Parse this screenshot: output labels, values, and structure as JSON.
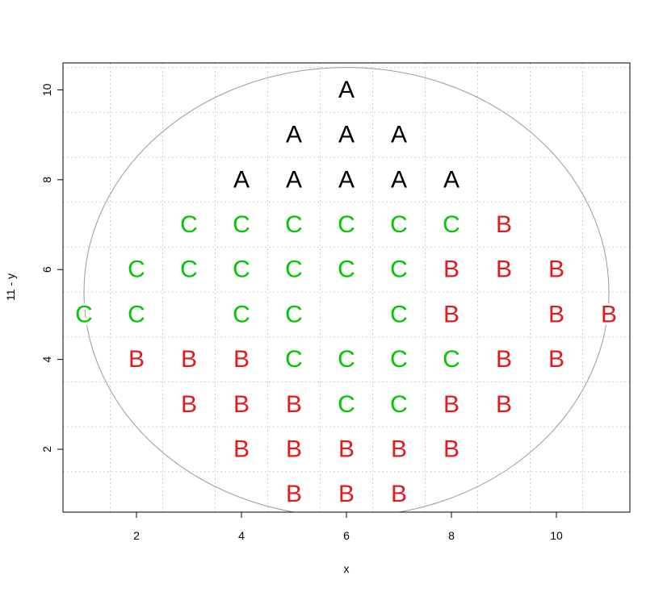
{
  "chart_data": {
    "type": "scatter",
    "xlabel": "x",
    "ylabel": "11 - y",
    "xlim": [
      0.6,
      11.4
    ],
    "ylim": [
      0.6,
      10.6
    ],
    "x_ticks": [
      2,
      4,
      6,
      8,
      10
    ],
    "y_ticks": [
      2,
      4,
      6,
      8,
      10
    ],
    "grid": true,
    "grid_lines": [
      1.5,
      2.5,
      3.5,
      4.5,
      5.5,
      6.5,
      7.5,
      8.5,
      9.5,
      10.5
    ],
    "circle": {
      "center_x": 6,
      "center_y": 5.5,
      "radius": 5
    },
    "colors": {
      "A": "#000000",
      "B": "#e31a1c",
      "C": "#00c800",
      "grid": "#cfcfcf",
      "circle": "#9a9a9a"
    },
    "points": [
      {
        "x": 6,
        "y": 10,
        "label": "A"
      },
      {
        "x": 5,
        "y": 9,
        "label": "A"
      },
      {
        "x": 6,
        "y": 9,
        "label": "A"
      },
      {
        "x": 7,
        "y": 9,
        "label": "A"
      },
      {
        "x": 4,
        "y": 8,
        "label": "A"
      },
      {
        "x": 5,
        "y": 8,
        "label": "A"
      },
      {
        "x": 6,
        "y": 8,
        "label": "A"
      },
      {
        "x": 7,
        "y": 8,
        "label": "A"
      },
      {
        "x": 8,
        "y": 8,
        "label": "A"
      },
      {
        "x": 3,
        "y": 7,
        "label": "C"
      },
      {
        "x": 4,
        "y": 7,
        "label": "C"
      },
      {
        "x": 5,
        "y": 7,
        "label": "C"
      },
      {
        "x": 6,
        "y": 7,
        "label": "C"
      },
      {
        "x": 7,
        "y": 7,
        "label": "C"
      },
      {
        "x": 8,
        "y": 7,
        "label": "C"
      },
      {
        "x": 9,
        "y": 7,
        "label": "B"
      },
      {
        "x": 2,
        "y": 6,
        "label": "C"
      },
      {
        "x": 3,
        "y": 6,
        "label": "C"
      },
      {
        "x": 4,
        "y": 6,
        "label": "C"
      },
      {
        "x": 5,
        "y": 6,
        "label": "C"
      },
      {
        "x": 6,
        "y": 6,
        "label": "C"
      },
      {
        "x": 7,
        "y": 6,
        "label": "C"
      },
      {
        "x": 8,
        "y": 6,
        "label": "B"
      },
      {
        "x": 9,
        "y": 6,
        "label": "B"
      },
      {
        "x": 10,
        "y": 6,
        "label": "B"
      },
      {
        "x": 1,
        "y": 5,
        "label": "C"
      },
      {
        "x": 2,
        "y": 5,
        "label": "C"
      },
      {
        "x": 4,
        "y": 5,
        "label": "C"
      },
      {
        "x": 5,
        "y": 5,
        "label": "C"
      },
      {
        "x": 7,
        "y": 5,
        "label": "C"
      },
      {
        "x": 8,
        "y": 5,
        "label": "B"
      },
      {
        "x": 10,
        "y": 5,
        "label": "B"
      },
      {
        "x": 11,
        "y": 5,
        "label": "B"
      },
      {
        "x": 2,
        "y": 4,
        "label": "B"
      },
      {
        "x": 3,
        "y": 4,
        "label": "B"
      },
      {
        "x": 4,
        "y": 4,
        "label": "B"
      },
      {
        "x": 5,
        "y": 4,
        "label": "C"
      },
      {
        "x": 6,
        "y": 4,
        "label": "C"
      },
      {
        "x": 7,
        "y": 4,
        "label": "C"
      },
      {
        "x": 8,
        "y": 4,
        "label": "C"
      },
      {
        "x": 9,
        "y": 4,
        "label": "B"
      },
      {
        "x": 10,
        "y": 4,
        "label": "B"
      },
      {
        "x": 3,
        "y": 3,
        "label": "B"
      },
      {
        "x": 4,
        "y": 3,
        "label": "B"
      },
      {
        "x": 5,
        "y": 3,
        "label": "B"
      },
      {
        "x": 6,
        "y": 3,
        "label": "C"
      },
      {
        "x": 7,
        "y": 3,
        "label": "C"
      },
      {
        "x": 8,
        "y": 3,
        "label": "B"
      },
      {
        "x": 9,
        "y": 3,
        "label": "B"
      },
      {
        "x": 4,
        "y": 2,
        "label": "B"
      },
      {
        "x": 5,
        "y": 2,
        "label": "B"
      },
      {
        "x": 6,
        "y": 2,
        "label": "B"
      },
      {
        "x": 7,
        "y": 2,
        "label": "B"
      },
      {
        "x": 8,
        "y": 2,
        "label": "B"
      },
      {
        "x": 5,
        "y": 1,
        "label": "B"
      },
      {
        "x": 6,
        "y": 1,
        "label": "B"
      },
      {
        "x": 7,
        "y": 1,
        "label": "B"
      }
    ]
  }
}
